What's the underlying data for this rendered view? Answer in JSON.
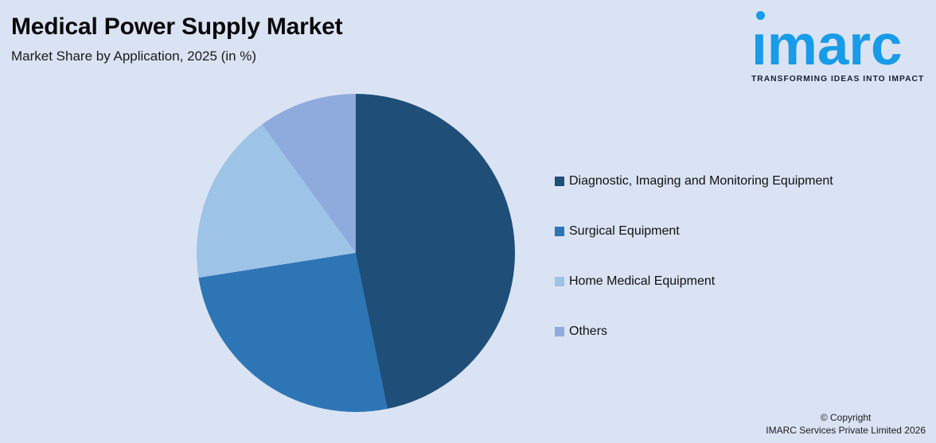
{
  "header": {
    "title": "Medical Power Supply Market",
    "subtitle": "Market Share by Application, 2025 (in %)"
  },
  "logo": {
    "brand": "imarc",
    "tagline": "TRANSFORMING IDEAS INTO IMPACT",
    "brand_color": "#189BE8",
    "tagline_color": "#18202E"
  },
  "chart_data": {
    "type": "pie",
    "title": "Medical Power Supply Market",
    "subtitle": "Market Share by Application, 2025 (in %)",
    "categories": [
      "Diagnostic, Imaging and Monitoring Equipment",
      "Surgical Equipment",
      "Home Medical Equipment",
      "Others"
    ],
    "values": [
      46.8,
      25.7,
      17.5,
      10.0
    ],
    "colors": [
      "#1F4E79",
      "#2E75B6",
      "#9DC3E6",
      "#8FAADC"
    ],
    "start_angle_deg": 0,
    "direction": "clockwise",
    "legend_position": "right",
    "data_labels": false
  },
  "footer": {
    "line1": "© Copyright",
    "line2": "IMARC Services Private Limited 2026"
  },
  "colors": {
    "background": "#DAE3F3",
    "title_text": "#0A0A0A",
    "body_text": "#1A1A1A"
  }
}
